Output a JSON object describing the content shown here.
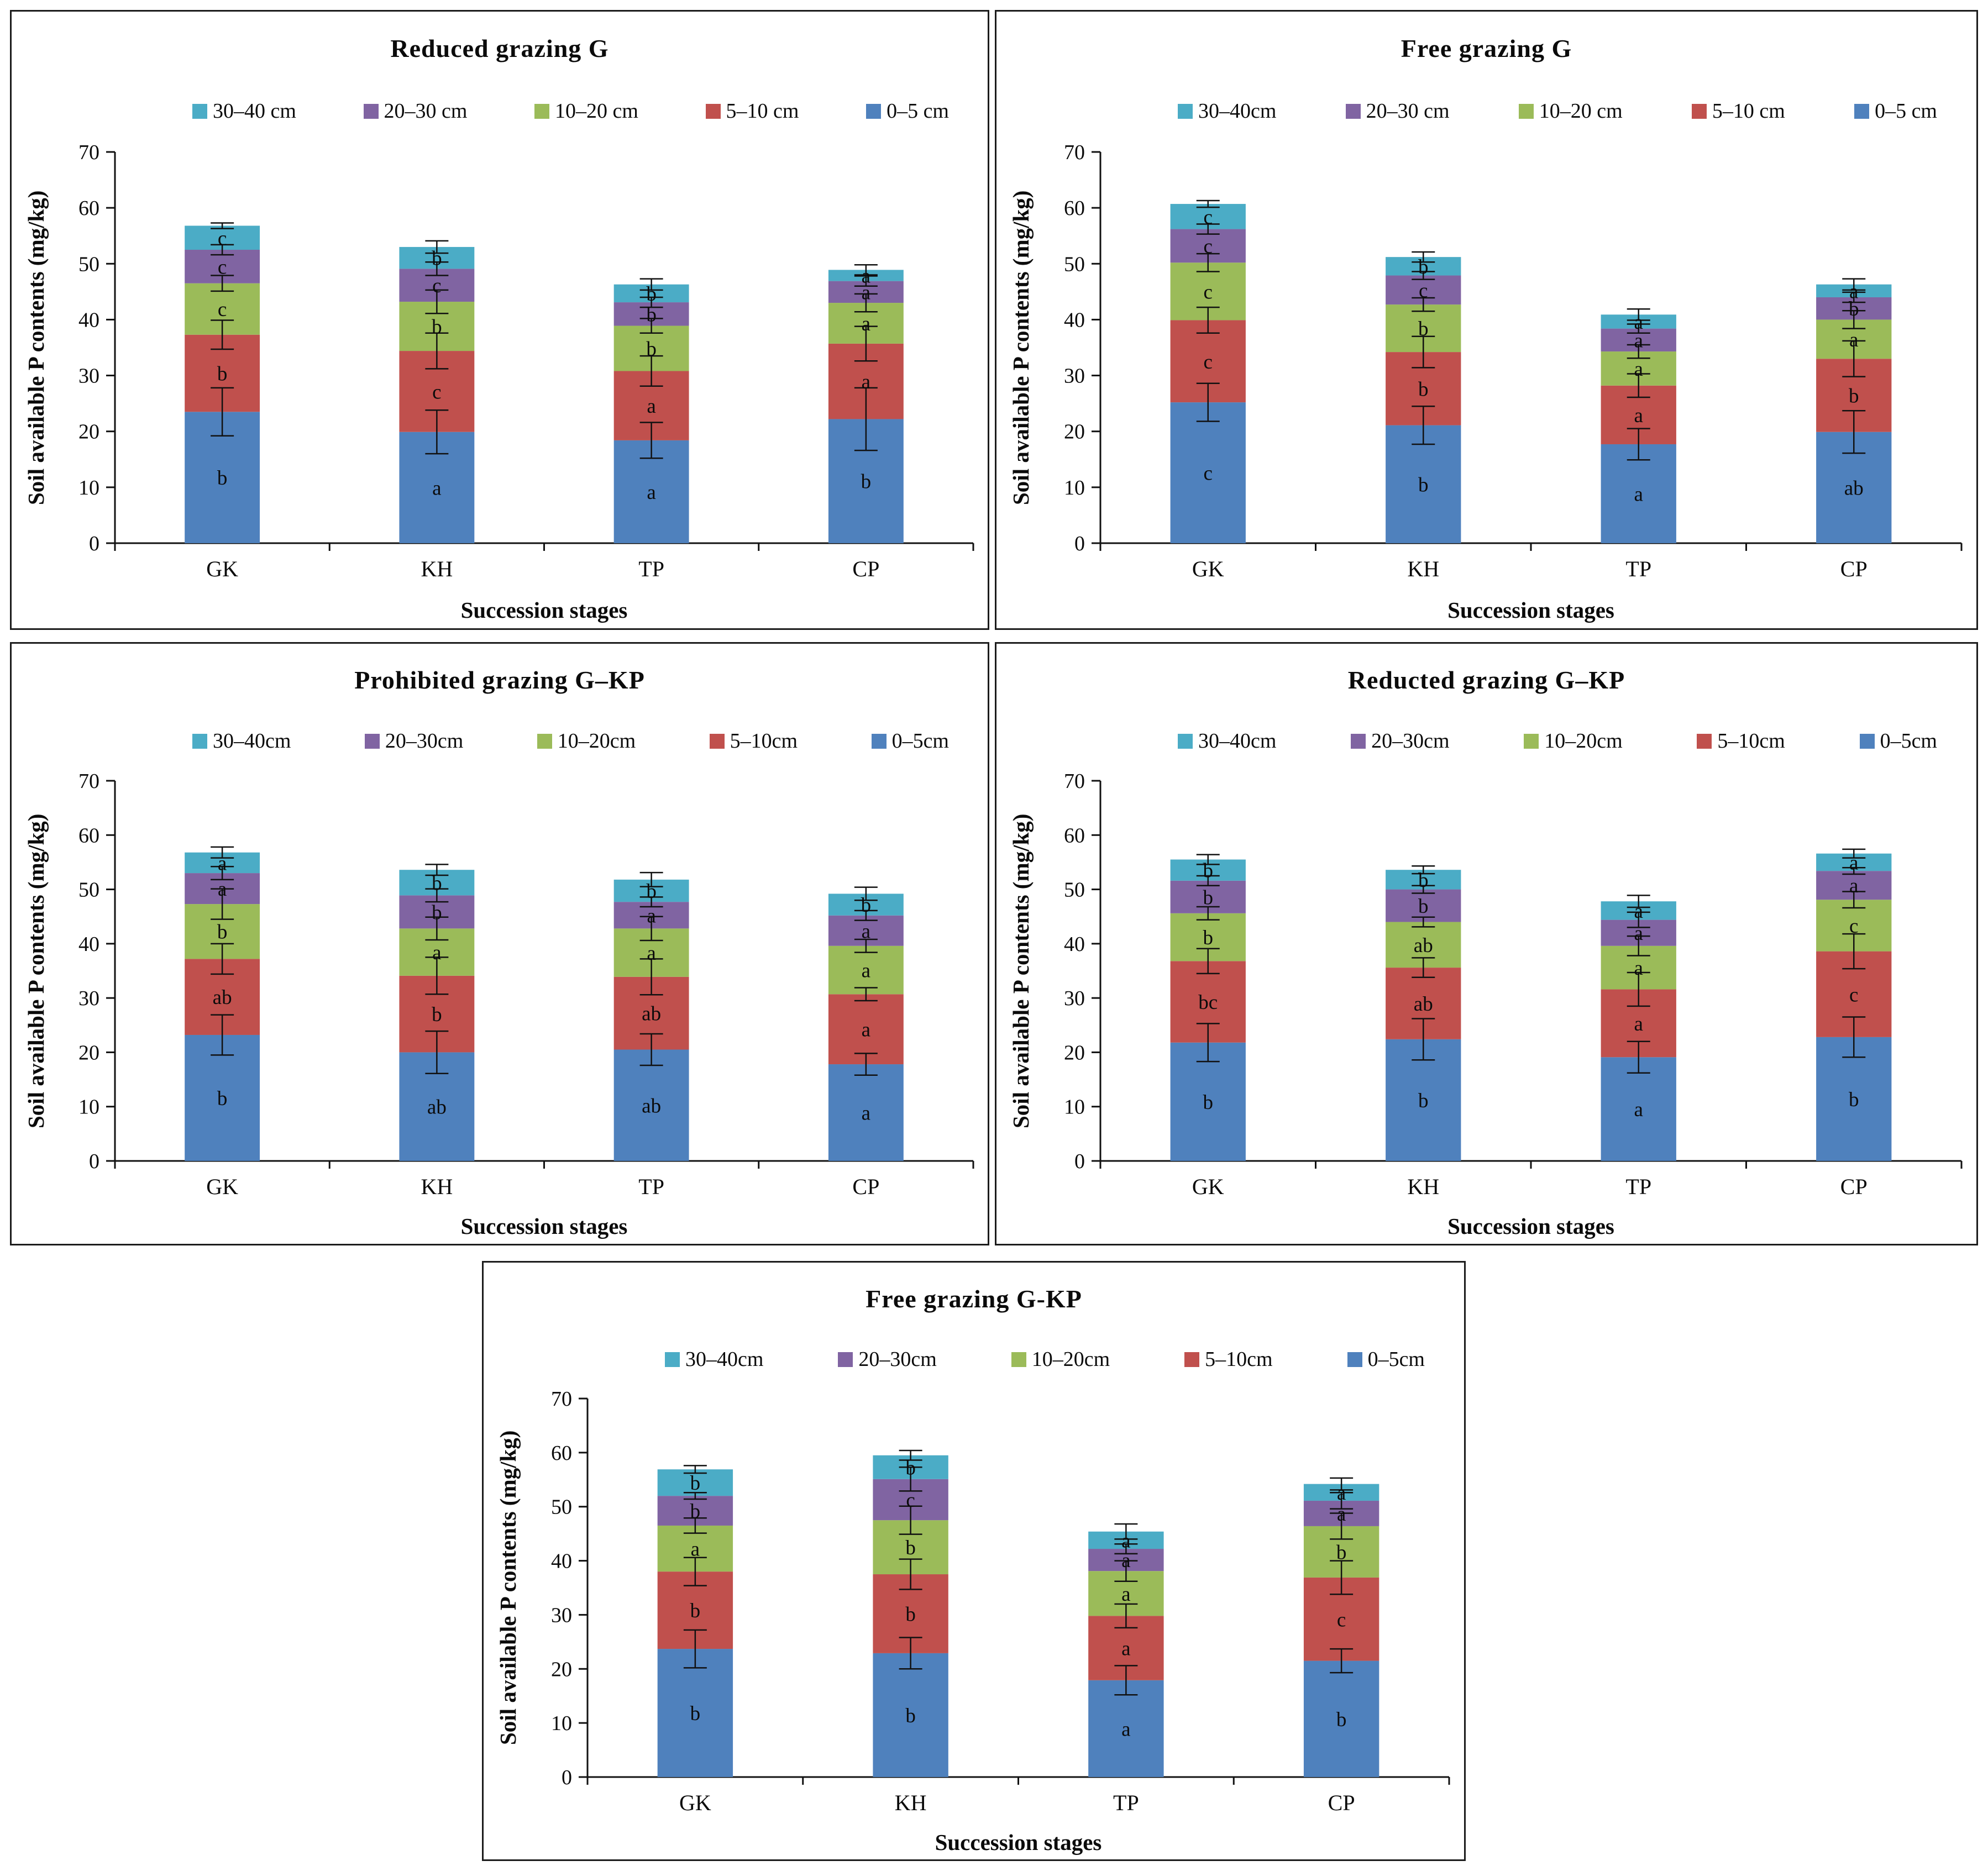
{
  "chart_data": [
    {
      "type": "bar",
      "stacked": true,
      "title": "Reduced grazing G",
      "xlabel": "Succession stages",
      "ylabel": "Soil available P contents (mg/kg)",
      "ylim": [
        0,
        70
      ],
      "yticks": [
        0,
        10,
        20,
        30,
        40,
        50,
        60,
        70
      ],
      "grid": false,
      "legend_position": "top",
      "categories": [
        "GK",
        "KH",
        "TP",
        "CP"
      ],
      "series": [
        {
          "name": "0–5 cm",
          "color": "#4F81BD",
          "values": [
            23.5,
            19.9,
            18.4,
            22.2
          ],
          "errors": [
            4.3,
            3.9,
            3.2,
            5.6
          ],
          "letters": [
            "b",
            "a",
            "a",
            "b"
          ]
        },
        {
          "name": "5–10 cm",
          "color": "#C0504D",
          "values": [
            13.8,
            14.5,
            12.4,
            13.5
          ],
          "errors": [
            2.6,
            3.2,
            2.7,
            3.1
          ],
          "letters": [
            "b",
            "c",
            "a",
            "a"
          ]
        },
        {
          "name": "10–20 cm",
          "color": "#9BBB59",
          "values": [
            9.2,
            8.8,
            8.1,
            7.3
          ],
          "errors": [
            1.4,
            2.1,
            1.3,
            1.6
          ],
          "letters": [
            "c",
            "b",
            "b",
            "a"
          ]
        },
        {
          "name": "20–30 cm",
          "color": "#8064A2",
          "values": [
            6.0,
            5.9,
            4.2,
            3.9
          ],
          "errors": [
            0.9,
            1.2,
            0.9,
            0.9
          ],
          "letters": [
            "c",
            "c",
            "b",
            "a"
          ]
        },
        {
          "name": "30–40 cm",
          "color": "#4BACC6",
          "values": [
            4.3,
            3.9,
            3.2,
            2.0
          ],
          "errors": [
            0.5,
            1.1,
            1.0,
            0.9
          ],
          "letters": [
            "c",
            "b",
            "b",
            "a"
          ]
        }
      ]
    },
    {
      "type": "bar",
      "stacked": true,
      "title": "Free grazing G",
      "xlabel": "Succession stages",
      "ylabel": "Soil available P contents (mg/kg)",
      "ylim": [
        0,
        70
      ],
      "yticks": [
        0,
        10,
        20,
        30,
        40,
        50,
        60,
        70
      ],
      "grid": false,
      "legend_position": "top",
      "categories": [
        "GK",
        "KH",
        "TP",
        "CP"
      ],
      "series": [
        {
          "name": "0–5 cm",
          "color": "#4F81BD",
          "values": [
            25.2,
            21.1,
            17.7,
            19.9
          ],
          "errors": [
            3.4,
            3.4,
            2.8,
            3.8
          ],
          "letters": [
            "c",
            "b",
            "a",
            "ab"
          ]
        },
        {
          "name": "5–10 cm",
          "color": "#C0504D",
          "values": [
            14.7,
            13.1,
            10.5,
            13.1
          ],
          "errors": [
            2.3,
            2.8,
            2.1,
            3.2
          ],
          "letters": [
            "c",
            "b",
            "a",
            "b"
          ]
        },
        {
          "name": "10–20 cm",
          "color": "#9BBB59",
          "values": [
            10.3,
            8.5,
            6.1,
            7.0
          ],
          "errors": [
            1.6,
            1.2,
            1.2,
            1.6
          ],
          "letters": [
            "c",
            "b",
            "a",
            "a"
          ]
        },
        {
          "name": "20–30 cm",
          "color": "#8064A2",
          "values": [
            6.0,
            5.2,
            4.1,
            4.0
          ],
          "errors": [
            0.9,
            0.7,
            0.8,
            0.9
          ],
          "letters": [
            "c",
            "c",
            "a",
            "b"
          ]
        },
        {
          "name": "30–40cm",
          "color": "#4BACC6",
          "values": [
            4.5,
            3.3,
            2.5,
            2.3
          ],
          "errors": [
            0.6,
            0.9,
            1.0,
            1.0
          ],
          "letters": [
            "c",
            "b",
            "a",
            "a"
          ]
        }
      ]
    },
    {
      "type": "bar",
      "stacked": true,
      "title": "Prohibited grazing G–KP",
      "xlabel": "Succession stages",
      "ylabel": "Soil available P contents (mg/kg)",
      "ylim": [
        0,
        70
      ],
      "yticks": [
        0,
        10,
        20,
        30,
        40,
        50,
        60,
        70
      ],
      "grid": false,
      "legend_position": "top",
      "categories": [
        "GK",
        "KH",
        "TP",
        "CP"
      ],
      "series": [
        {
          "name": "0–5cm",
          "color": "#4F81BD",
          "values": [
            23.2,
            20.0,
            20.5,
            17.8
          ],
          "errors": [
            3.7,
            3.9,
            2.9,
            2.0
          ],
          "letters": [
            "b",
            "ab",
            "ab",
            "a"
          ]
        },
        {
          "name": "5–10cm",
          "color": "#C0504D",
          "values": [
            14.0,
            14.1,
            13.4,
            12.9
          ],
          "errors": [
            2.8,
            3.4,
            3.3,
            1.2
          ],
          "letters": [
            "ab",
            "b",
            "ab",
            "a"
          ]
        },
        {
          "name": "10–20cm",
          "color": "#9BBB59",
          "values": [
            10.1,
            8.7,
            8.9,
            8.9
          ],
          "errors": [
            2.8,
            2.1,
            2.2,
            1.2
          ],
          "letters": [
            "b",
            "a",
            "a",
            "a"
          ]
        },
        {
          "name": "20–30cm",
          "color": "#8064A2",
          "values": [
            5.7,
            6.1,
            4.9,
            5.6
          ],
          "errors": [
            1.2,
            1.2,
            0.9,
            0.9
          ],
          "letters": [
            "a",
            "b",
            "a",
            "a"
          ]
        },
        {
          "name": "30–40cm",
          "color": "#4BACC6",
          "values": [
            3.8,
            4.7,
            4.1,
            4.0
          ],
          "errors": [
            1.0,
            1.0,
            1.3,
            1.2
          ],
          "letters": [
            "a",
            "b",
            "b",
            "b"
          ]
        }
      ]
    },
    {
      "type": "bar",
      "stacked": true,
      "title": "Reducted grazing G–KP",
      "xlabel": "Succession stages",
      "ylabel": "Soil available P contents (mg/kg)",
      "ylim": [
        0,
        70
      ],
      "yticks": [
        0,
        10,
        20,
        30,
        40,
        50,
        60,
        70
      ],
      "grid": false,
      "legend_position": "top",
      "categories": [
        "GK",
        "KH",
        "TP",
        "CP"
      ],
      "series": [
        {
          "name": "0–5cm",
          "color": "#4F81BD",
          "values": [
            21.8,
            22.4,
            19.1,
            22.8
          ],
          "errors": [
            3.5,
            3.8,
            2.9,
            3.7
          ],
          "letters": [
            "b",
            "b",
            "a",
            "b"
          ]
        },
        {
          "name": "5–10cm",
          "color": "#C0504D",
          "values": [
            15.0,
            13.2,
            12.5,
            15.8
          ],
          "errors": [
            2.3,
            1.8,
            3.1,
            3.2
          ],
          "letters": [
            "bc",
            "ab",
            "a",
            "c"
          ]
        },
        {
          "name": "10–20cm",
          "color": "#9BBB59",
          "values": [
            8.8,
            8.4,
            8.0,
            9.5
          ],
          "errors": [
            1.2,
            0.9,
            1.8,
            1.5
          ],
          "letters": [
            "b",
            "ab",
            "a",
            "c"
          ]
        },
        {
          "name": "20–30cm",
          "color": "#8064A2",
          "values": [
            6.0,
            6.0,
            4.8,
            5.3
          ],
          "errors": [
            0.9,
            0.7,
            1.4,
            0.6
          ],
          "letters": [
            "b",
            "b",
            "a",
            "a"
          ]
        },
        {
          "name": "30–40cm",
          "color": "#4BACC6",
          "values": [
            3.9,
            3.6,
            3.4,
            3.2
          ],
          "errors": [
            0.9,
            0.7,
            1.1,
            0.8
          ],
          "letters": [
            "b",
            "b",
            "a",
            "a"
          ]
        }
      ]
    },
    {
      "type": "bar",
      "stacked": true,
      "title": "Free grazing G-KP",
      "xlabel": "Succession stages",
      "ylabel": "Soil available P contents (mg/kg)",
      "ylim": [
        0,
        70
      ],
      "yticks": [
        0,
        10,
        20,
        30,
        40,
        50,
        60,
        70
      ],
      "grid": false,
      "legend_position": "top",
      "categories": [
        "GK",
        "KH",
        "TP",
        "CP"
      ],
      "series": [
        {
          "name": "0–5cm",
          "color": "#4F81BD",
          "values": [
            23.7,
            22.9,
            17.9,
            21.5
          ],
          "errors": [
            3.5,
            2.9,
            2.7,
            2.2
          ],
          "letters": [
            "b",
            "b",
            "a",
            "b"
          ]
        },
        {
          "name": "5–10cm",
          "color": "#C0504D",
          "values": [
            14.3,
            14.6,
            11.9,
            15.4
          ],
          "errors": [
            2.6,
            2.8,
            2.2,
            3.1
          ],
          "letters": [
            "b",
            "b",
            "a",
            "c"
          ]
        },
        {
          "name": "10–20cm",
          "color": "#9BBB59",
          "values": [
            8.5,
            10.0,
            8.3,
            9.5
          ],
          "errors": [
            1.4,
            2.6,
            1.9,
            2.4
          ],
          "letters": [
            "a",
            "b",
            "a",
            "b"
          ]
        },
        {
          "name": "20–30cm",
          "color": "#8064A2",
          "values": [
            5.5,
            7.6,
            4.1,
            4.7
          ],
          "errors": [
            0.6,
            2.2,
            0.9,
            1.5
          ],
          "letters": [
            "b",
            "c",
            "a",
            "a"
          ]
        },
        {
          "name": "30–40cm",
          "color": "#4BACC6",
          "values": [
            4.9,
            4.4,
            3.2,
            3.1
          ],
          "errors": [
            0.7,
            0.9,
            1.4,
            1.1
          ],
          "letters": [
            "b",
            "b",
            "a",
            "a"
          ]
        }
      ]
    }
  ]
}
